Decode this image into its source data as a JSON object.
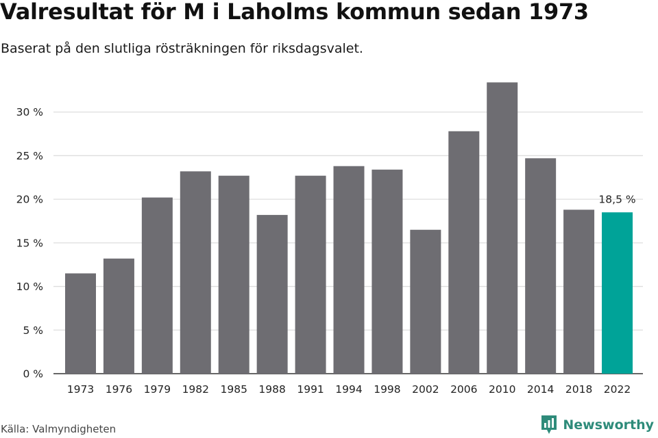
{
  "header": {
    "title": "Valresultat för M i Laholms kommun sedan 1973",
    "subtitle": "Baserat på den slutliga rösträkningen för riksdagsvalet."
  },
  "footer": {
    "source": "Källa: Valmyndigheten",
    "brand_name": "Newsworthy",
    "brand_icon": "newsworthy-logo-icon"
  },
  "colors": {
    "bar": "#6e6d72",
    "highlight": "#00a398",
    "grid": "#dddddd",
    "axis": "#333333",
    "brand": "#2e8b7a"
  },
  "chart_data": {
    "type": "bar",
    "categories": [
      "1973",
      "1976",
      "1979",
      "1982",
      "1985",
      "1988",
      "1991",
      "1994",
      "1998",
      "2002",
      "2006",
      "2010",
      "2014",
      "2018",
      "2022"
    ],
    "values": [
      11.5,
      13.2,
      20.2,
      23.2,
      22.7,
      18.2,
      22.7,
      23.8,
      23.4,
      16.5,
      27.8,
      33.4,
      24.7,
      18.8,
      18.5
    ],
    "highlight_index": 14,
    "data_labels": [
      {
        "index": 14,
        "text": "18,5 %"
      }
    ],
    "y_ticks": [
      0,
      5,
      10,
      15,
      20,
      25,
      30
    ],
    "y_tick_labels": [
      "0 %",
      "5 %",
      "10 %",
      "15 %",
      "20 %",
      "25 %",
      "30 %"
    ],
    "ylim": [
      0,
      35
    ],
    "xlabel": "",
    "ylabel": "",
    "grid": true,
    "legend": "none"
  }
}
